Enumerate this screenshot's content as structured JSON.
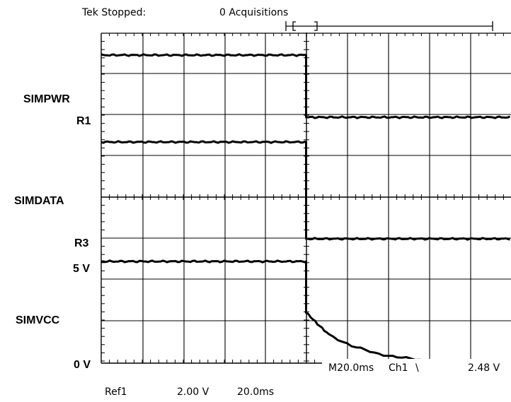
{
  "header": {
    "status": "Tek Stopped:",
    "acquisitions": "0 Acquisitions"
  },
  "channel_labels": {
    "simpwr": "SIMPWR",
    "r1": "R1",
    "simdata": "SIMDATA",
    "r3": "R3",
    "five_v": "5 V",
    "simvcc": "SIMVCC",
    "zero_v": "0 V"
  },
  "readout": {
    "timebase": "M20.0ms",
    "trigger_source": "Ch1",
    "trigger_slope": "\\",
    "trigger_level": "2.48 V"
  },
  "footer": {
    "ref": "Ref1",
    "ref_scale": "2.00 V",
    "ref_time": "20.0ms"
  },
  "chart_data": {
    "type": "line",
    "title": "",
    "xlabel": "",
    "ylabel": "",
    "grid": true,
    "x_unit": "ms",
    "xlim": [
      0,
      180
    ],
    "divisions_x": 9,
    "series": [
      {
        "name": "SIMPWR",
        "x": [
          0,
          90,
          90,
          180
        ],
        "y": [
          1,
          1,
          0,
          0
        ]
      },
      {
        "name": "SIMDATA",
        "x": [
          0,
          90,
          90,
          180
        ],
        "y": [
          0,
          0,
          1,
          1
        ]
      },
      {
        "name": "SIMVCC",
        "x": [
          0,
          90,
          90,
          95,
          100,
          110,
          120,
          130,
          140,
          150,
          160,
          170,
          180
        ],
        "y": [
          5,
          5,
          2.5,
          1.9,
          1.4,
          0.85,
          0.5,
          0.3,
          0.15,
          0.08,
          0.04,
          0.02,
          0.0
        ]
      }
    ]
  }
}
